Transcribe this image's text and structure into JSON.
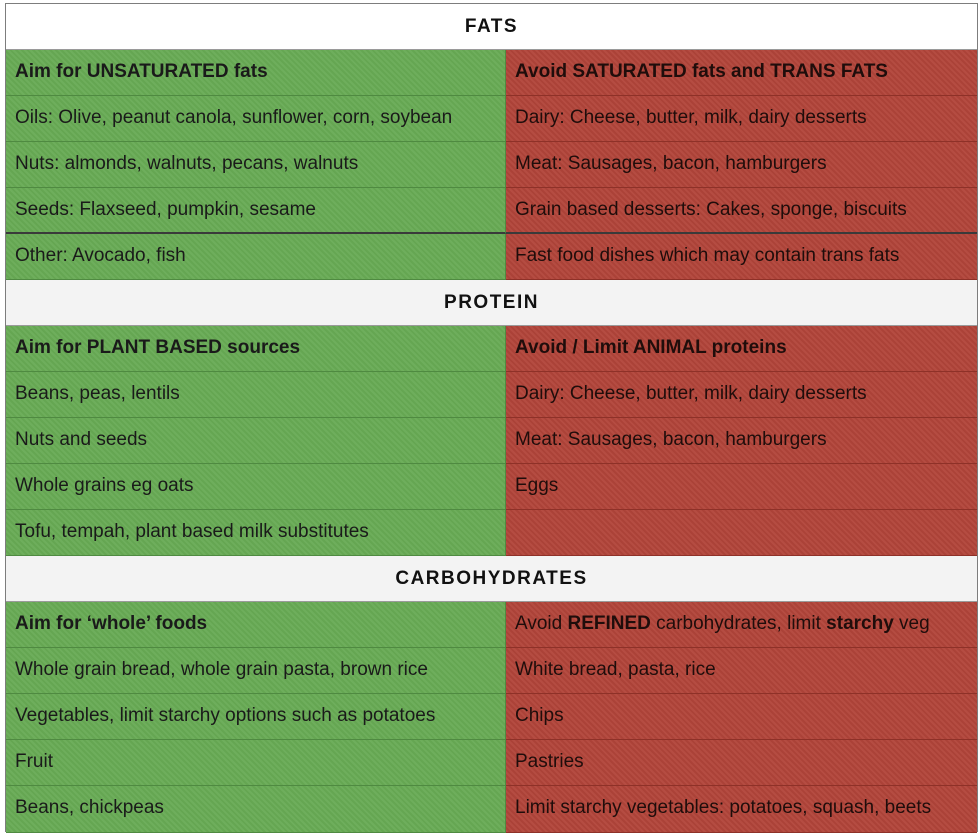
{
  "sections": [
    {
      "title": "FATS",
      "aim": "Aim for UNSATURATED fats",
      "avoid": "Avoid SATURATED fats and TRANS FATS",
      "rows": [
        {
          "left": "Oils: Olive, peanut canola, sunflower, corn, soybean",
          "right": "Dairy: Cheese, butter, milk, dairy desserts"
        },
        {
          "left": "Nuts: almonds, walnuts, pecans, walnuts",
          "right": "Meat: Sausages, bacon, hamburgers"
        },
        {
          "left": "Seeds: Flaxseed, pumpkin, sesame",
          "right": "Grain based desserts: Cakes, sponge, biscuits"
        },
        {
          "left": "Other: Avocado, fish",
          "right": "Fast food dishes which may contain trans fats"
        }
      ]
    },
    {
      "title": "PROTEIN",
      "aim": "Aim for PLANT BASED sources",
      "avoid": "Avoid / Limit ANIMAL proteins",
      "rows": [
        {
          "left": "Beans, peas, lentils",
          "right": "Dairy: Cheese, butter, milk, dairy desserts"
        },
        {
          "left": "Nuts and seeds",
          "right": "Meat: Sausages, bacon, hamburgers"
        },
        {
          "left": "Whole grains eg oats",
          "right": "Eggs"
        },
        {
          "left": "Tofu, tempah, plant based milk substitutes",
          "right": ""
        }
      ]
    },
    {
      "title": "CARBOHYDRATES",
      "aim": "Aim for ‘whole’ foods",
      "avoid_parts": [
        "Avoid ",
        "REFINED",
        " carbohydrates, limit ",
        "starchy",
        " veg"
      ],
      "rows": [
        {
          "left": "Whole grain bread, whole grain pasta, brown rice",
          "right": "White bread, pasta, rice"
        },
        {
          "left": "Vegetables, limit starchy options such as potatoes",
          "right": "Chips"
        },
        {
          "left": "Fruit",
          "right": "Pastries"
        },
        {
          "left": "Beans, chickpeas",
          "right": "Limit starchy vegetables: potatoes, squash, beets"
        }
      ]
    }
  ],
  "colors": {
    "aim_green": "#68ab55",
    "avoid_red": "#b2453a"
  }
}
